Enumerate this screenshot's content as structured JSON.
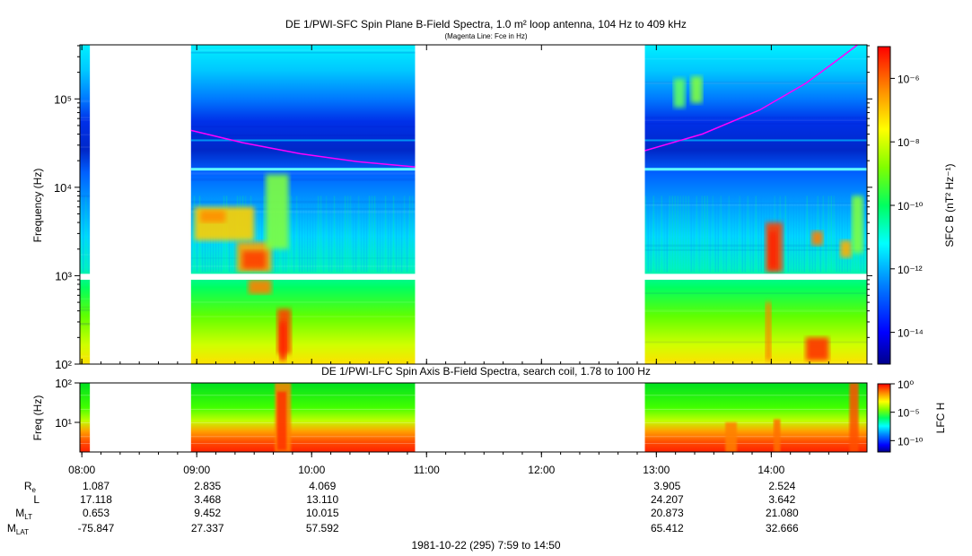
{
  "colors": {
    "fce_line": "#ff00ff",
    "palette": [
      "#00008b",
      "#0000ff",
      "#0050ff",
      "#00aaff",
      "#00e5ff",
      "#00ffb0",
      "#00ff40",
      "#80ff00",
      "#ffff00",
      "#ffb000",
      "#ff5000",
      "#ff0000"
    ]
  },
  "chart_data": [
    {
      "type": "heatmap",
      "title": "DE 1/PWI-SFC  Spin Plane B-Field Spectra, 1.0 m² loop antenna, 104 Hz to 409 kHz",
      "subtitle": "(Magenta Line: Fce in Hz)",
      "ylabel": "Frequency (Hz)",
      "yscale": "log",
      "ylim": [
        100,
        409000
      ],
      "ytick_labels": [
        "10²",
        "10³",
        "10⁴",
        "10⁵"
      ],
      "colorbar_label": "SFC B (nT² Hz⁻¹)",
      "colorbar_scale": "log",
      "colorbar_range": [
        1e-15,
        1e-05
      ],
      "colorbar_tick_labels": [
        "10⁻⁶",
        "10⁻⁸",
        "10⁻¹⁰",
        "10⁻¹²",
        "10⁻¹⁴"
      ],
      "data_intervals_utc_hours": [
        [
          7.983,
          8.07
        ],
        [
          8.95,
          10.9
        ],
        [
          12.9,
          14.83
        ]
      ],
      "fce_line_hz": {
        "hours": [
          8.95,
          9.4,
          9.9,
          10.4,
          10.9,
          12.9,
          13.4,
          13.9,
          14.3,
          14.55,
          14.75
        ],
        "values": [
          44000,
          32000,
          24000,
          19500,
          17000,
          26000,
          40000,
          75000,
          150000,
          260000,
          409000
        ]
      },
      "interference_line_hz": 16000
    },
    {
      "type": "heatmap",
      "title": "DE 1/PWI-LFC  Spin Axis B-Field Spectra, search coil, 1.78 to 100 Hz",
      "ylabel": "Freq (Hz)",
      "yscale": "log",
      "ylim": [
        1.78,
        100
      ],
      "ytick_labels": [
        "10²",
        "10¹"
      ],
      "colorbar_label": "LFC H",
      "colorbar_scale": "log",
      "colorbar_range": [
        1e-12,
        1
      ],
      "colorbar_tick_labels": [
        "10⁰",
        "10⁻⁵",
        "10⁻¹⁰"
      ],
      "data_intervals_utc_hours": [
        [
          7.983,
          8.07
        ],
        [
          8.95,
          10.9
        ],
        [
          12.9,
          14.83
        ]
      ]
    }
  ],
  "time_axis": {
    "range_hours": [
      7.983,
      14.833
    ],
    "tick_hours": [
      8,
      9,
      10,
      11,
      12,
      13,
      14
    ],
    "tick_labels": [
      "08:00",
      "09:00",
      "10:00",
      "11:00",
      "12:00",
      "13:00",
      "14:00"
    ],
    "date_label": "1981-10-22 (295) 7:59 to 14:50"
  },
  "ephemeris": {
    "hours": [
      7.983,
      9,
      10,
      13,
      14
    ],
    "rows": [
      {
        "label": "R",
        "sub": "e",
        "values": [
          "1.087",
          "2.835",
          "4.069",
          "3.905",
          "2.524"
        ]
      },
      {
        "label": "L",
        "sub": "",
        "values": [
          "17.118",
          "3.468",
          "13.110",
          "24.207",
          "3.642"
        ]
      },
      {
        "label": "M",
        "sub": "LT",
        "values": [
          "0.653",
          "9.452",
          "10.015",
          "20.873",
          "21.080"
        ]
      },
      {
        "label": "M",
        "sub": "LAT",
        "values": [
          "-75.847",
          "27.337",
          "57.592",
          "65.412",
          "32.666"
        ]
      }
    ]
  }
}
